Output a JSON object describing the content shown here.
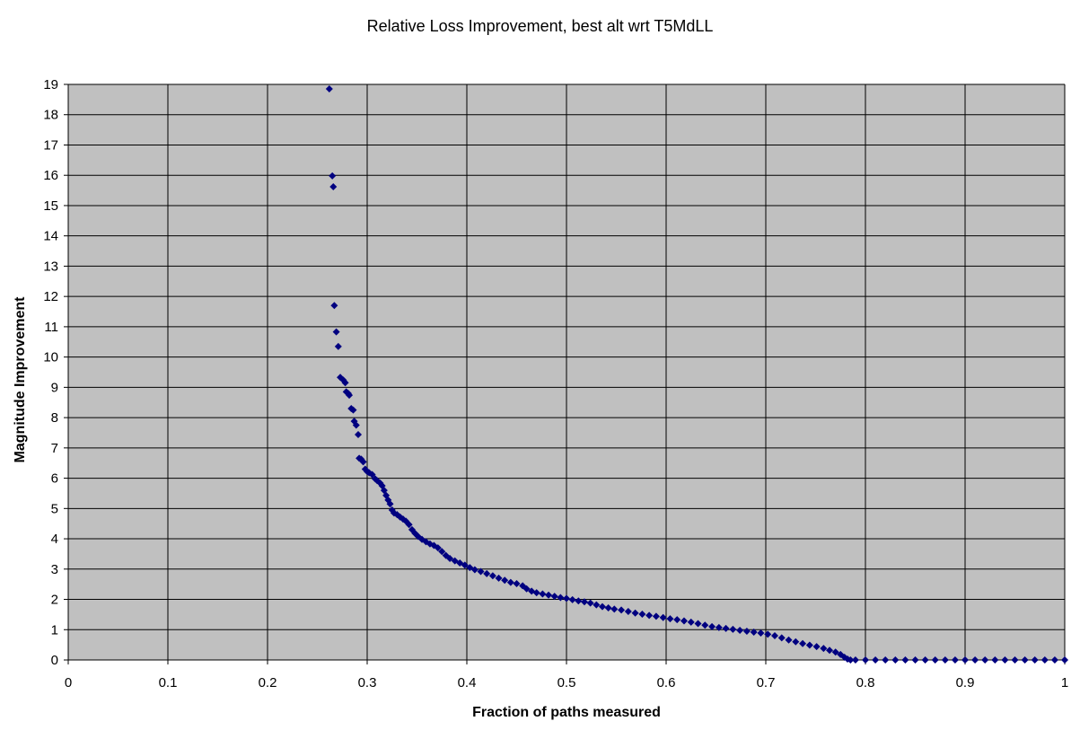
{
  "chart_data": {
    "type": "scatter",
    "title": "Relative Loss Improvement, best alt wrt T5MdLL",
    "xlabel": "Fraction of paths measured",
    "ylabel": "Magnitude Improvement",
    "xlim": [
      0,
      1
    ],
    "ylim": [
      0,
      19
    ],
    "x_ticks": [
      0,
      0.1,
      0.2,
      0.3,
      0.4,
      0.5,
      0.6,
      0.7,
      0.8,
      0.9,
      1
    ],
    "x_tick_labels": [
      "0",
      "0.1",
      "0.2",
      "0.3",
      "0.4",
      "0.5",
      "0.6",
      "0.7",
      "0.8",
      "0.9",
      "1"
    ],
    "y_ticks": [
      0,
      1,
      2,
      3,
      4,
      5,
      6,
      7,
      8,
      9,
      10,
      11,
      12,
      13,
      14,
      15,
      16,
      17,
      18,
      19
    ],
    "grid": true,
    "legend": "none",
    "plot_background": "#C0C0C0",
    "marker_color": "#000080",
    "marker": "diamond",
    "series": [
      {
        "points": [
          [
            0.262,
            18.85
          ],
          [
            0.265,
            15.98
          ],
          [
            0.266,
            15.62
          ],
          [
            0.267,
            11.7
          ],
          [
            0.269,
            10.83
          ],
          [
            0.271,
            10.35
          ],
          [
            0.273,
            9.33
          ],
          [
            0.276,
            9.24
          ],
          [
            0.278,
            9.15
          ],
          [
            0.279,
            8.85
          ],
          [
            0.281,
            8.8
          ],
          [
            0.282,
            8.74
          ],
          [
            0.284,
            8.3
          ],
          [
            0.286,
            8.25
          ],
          [
            0.287,
            7.88
          ],
          [
            0.289,
            7.75
          ],
          [
            0.291,
            7.44
          ],
          [
            0.292,
            6.66
          ],
          [
            0.294,
            6.63
          ],
          [
            0.296,
            6.54
          ],
          [
            0.298,
            6.3
          ],
          [
            0.3,
            6.22
          ],
          [
            0.302,
            6.18
          ],
          [
            0.305,
            6.12
          ],
          [
            0.308,
            5.98
          ],
          [
            0.31,
            5.92
          ],
          [
            0.313,
            5.84
          ],
          [
            0.315,
            5.75
          ],
          [
            0.317,
            5.6
          ],
          [
            0.319,
            5.43
          ],
          [
            0.321,
            5.28
          ],
          [
            0.323,
            5.15
          ],
          [
            0.325,
            4.95
          ],
          [
            0.327,
            4.85
          ],
          [
            0.33,
            4.8
          ],
          [
            0.333,
            4.72
          ],
          [
            0.336,
            4.65
          ],
          [
            0.339,
            4.58
          ],
          [
            0.342,
            4.47
          ],
          [
            0.345,
            4.3
          ],
          [
            0.348,
            4.18
          ],
          [
            0.351,
            4.08
          ],
          [
            0.355,
            3.98
          ],
          [
            0.359,
            3.9
          ],
          [
            0.363,
            3.83
          ],
          [
            0.367,
            3.78
          ],
          [
            0.371,
            3.7
          ],
          [
            0.375,
            3.58
          ],
          [
            0.379,
            3.45
          ],
          [
            0.383,
            3.35
          ],
          [
            0.388,
            3.27
          ],
          [
            0.393,
            3.2
          ],
          [
            0.398,
            3.13
          ],
          [
            0.403,
            3.05
          ],
          [
            0.408,
            2.98
          ],
          [
            0.414,
            2.92
          ],
          [
            0.42,
            2.85
          ],
          [
            0.426,
            2.78
          ],
          [
            0.432,
            2.7
          ],
          [
            0.438,
            2.63
          ],
          [
            0.444,
            2.56
          ],
          [
            0.45,
            2.52
          ],
          [
            0.456,
            2.45
          ],
          [
            0.46,
            2.35
          ],
          [
            0.465,
            2.27
          ],
          [
            0.47,
            2.22
          ],
          [
            0.476,
            2.18
          ],
          [
            0.482,
            2.14
          ],
          [
            0.488,
            2.1
          ],
          [
            0.494,
            2.06
          ],
          [
            0.5,
            2.03
          ],
          [
            0.506,
            1.99
          ],
          [
            0.512,
            1.95
          ],
          [
            0.518,
            1.92
          ],
          [
            0.524,
            1.88
          ],
          [
            0.53,
            1.82
          ],
          [
            0.536,
            1.76
          ],
          [
            0.542,
            1.72
          ],
          [
            0.548,
            1.68
          ],
          [
            0.555,
            1.65
          ],
          [
            0.562,
            1.6
          ],
          [
            0.569,
            1.55
          ],
          [
            0.576,
            1.51
          ],
          [
            0.583,
            1.47
          ],
          [
            0.59,
            1.44
          ],
          [
            0.597,
            1.4
          ],
          [
            0.604,
            1.36
          ],
          [
            0.611,
            1.33
          ],
          [
            0.618,
            1.29
          ],
          [
            0.625,
            1.25
          ],
          [
            0.632,
            1.2
          ],
          [
            0.639,
            1.15
          ],
          [
            0.646,
            1.1
          ],
          [
            0.653,
            1.07
          ],
          [
            0.66,
            1.04
          ],
          [
            0.667,
            1.01
          ],
          [
            0.674,
            0.98
          ],
          [
            0.681,
            0.95
          ],
          [
            0.688,
            0.92
          ],
          [
            0.695,
            0.89
          ],
          [
            0.702,
            0.85
          ],
          [
            0.709,
            0.8
          ],
          [
            0.716,
            0.73
          ],
          [
            0.723,
            0.66
          ],
          [
            0.73,
            0.6
          ],
          [
            0.737,
            0.54
          ],
          [
            0.744,
            0.49
          ],
          [
            0.751,
            0.44
          ],
          [
            0.758,
            0.38
          ],
          [
            0.764,
            0.32
          ],
          [
            0.77,
            0.26
          ],
          [
            0.775,
            0.18
          ],
          [
            0.779,
            0.09
          ],
          [
            0.782,
            0.03
          ],
          [
            0.785,
            0
          ],
          [
            0.79,
            0
          ],
          [
            0.8,
            0
          ],
          [
            0.81,
            0
          ],
          [
            0.82,
            0
          ],
          [
            0.83,
            0
          ],
          [
            0.84,
            0
          ],
          [
            0.85,
            0
          ],
          [
            0.86,
            0
          ],
          [
            0.87,
            0
          ],
          [
            0.88,
            0
          ],
          [
            0.89,
            0
          ],
          [
            0.9,
            0
          ],
          [
            0.91,
            0
          ],
          [
            0.92,
            0
          ],
          [
            0.93,
            0
          ],
          [
            0.94,
            0
          ],
          [
            0.95,
            0
          ],
          [
            0.96,
            0
          ],
          [
            0.97,
            0
          ],
          [
            0.98,
            0
          ],
          [
            0.99,
            0
          ],
          [
            1.0,
            0
          ]
        ]
      }
    ]
  }
}
